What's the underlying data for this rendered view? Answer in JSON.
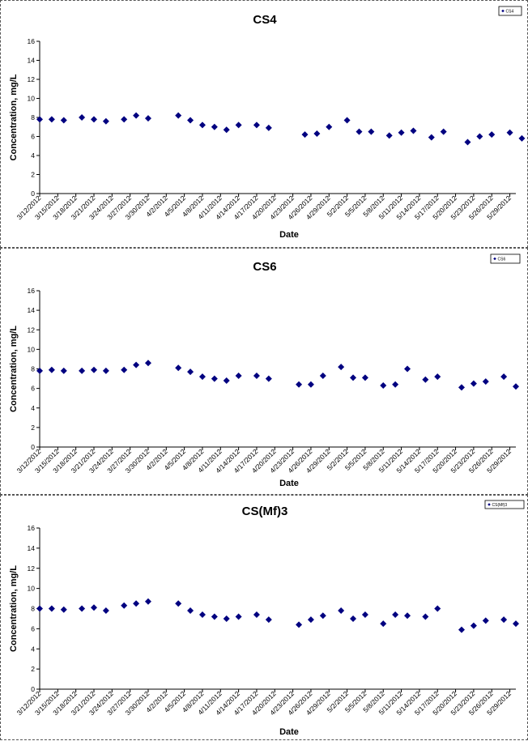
{
  "chart_data": [
    {
      "type": "scatter",
      "title": "CS4",
      "xlabel": "Date",
      "ylabel": "Concentration, mg/L",
      "ylim": [
        0,
        16
      ],
      "yticks": [
        "0",
        "2",
        "4",
        "6",
        "8",
        "10",
        "12",
        "14",
        "16"
      ],
      "xlim": [
        "3/12/2012",
        "5/30/2012"
      ],
      "xticks": [
        "3/12/2012",
        "3/15/2012",
        "3/18/2012",
        "3/21/2012",
        "3/24/2012",
        "3/27/2012",
        "3/30/2012",
        "4/2/2012",
        "4/5/2012",
        "4/8/2012",
        "4/11/2012",
        "4/14/2012",
        "4/17/2012",
        "4/20/2012",
        "4/23/2012",
        "4/26/2012",
        "4/29/2012",
        "5/2/2012",
        "5/5/2012",
        "5/8/2012",
        "5/11/2012",
        "5/14/2012",
        "5/17/2012",
        "5/20/2012",
        "5/23/2012",
        "5/26/2012",
        "5/29/2012"
      ],
      "grid": false,
      "legend": "top-right",
      "marker_color": "#000080",
      "series": [
        {
          "name": "CS4",
          "points": [
            {
              "x": "3/12/2012",
              "y": 7.8
            },
            {
              "x": "3/14/2012",
              "y": 7.8
            },
            {
              "x": "3/16/2012",
              "y": 7.7
            },
            {
              "x": "3/19/2012",
              "y": 8.0
            },
            {
              "x": "3/21/2012",
              "y": 7.8
            },
            {
              "x": "3/23/2012",
              "y": 7.6
            },
            {
              "x": "3/26/2012",
              "y": 7.8
            },
            {
              "x": "3/28/2012",
              "y": 8.2
            },
            {
              "x": "3/30/2012",
              "y": 7.9
            },
            {
              "x": "4/4/2012",
              "y": 8.2
            },
            {
              "x": "4/6/2012",
              "y": 7.7
            },
            {
              "x": "4/8/2012",
              "y": 7.2
            },
            {
              "x": "4/10/2012",
              "y": 7.0
            },
            {
              "x": "4/12/2012",
              "y": 6.7
            },
            {
              "x": "4/14/2012",
              "y": 7.2
            },
            {
              "x": "4/17/2012",
              "y": 7.2
            },
            {
              "x": "4/19/2012",
              "y": 6.9
            },
            {
              "x": "4/25/2012",
              "y": 6.2
            },
            {
              "x": "4/27/2012",
              "y": 6.3
            },
            {
              "x": "4/29/2012",
              "y": 7.0
            },
            {
              "x": "5/2/2012",
              "y": 7.7
            },
            {
              "x": "5/4/2012",
              "y": 6.5
            },
            {
              "x": "5/6/2012",
              "y": 6.5
            },
            {
              "x": "5/9/2012",
              "y": 6.1
            },
            {
              "x": "5/11/2012",
              "y": 6.4
            },
            {
              "x": "5/13/2012",
              "y": 6.6
            },
            {
              "x": "5/16/2012",
              "y": 5.9
            },
            {
              "x": "5/18/2012",
              "y": 6.5
            },
            {
              "x": "5/22/2012",
              "y": 5.4
            },
            {
              "x": "5/24/2012",
              "y": 6.0
            },
            {
              "x": "5/26/2012",
              "y": 6.2
            },
            {
              "x": "5/29/2012",
              "y": 6.4
            },
            {
              "x": "5/31/2012",
              "y": 5.8
            }
          ]
        }
      ]
    },
    {
      "type": "scatter",
      "title": "CS6",
      "xlabel": "Date",
      "ylabel": "Concentration, mg/L",
      "ylim": [
        0,
        16
      ],
      "yticks": [
        "0",
        "2",
        "4",
        "6",
        "8",
        "10",
        "12",
        "14",
        "16"
      ],
      "xlim": [
        "3/12/2012",
        "5/30/2012"
      ],
      "xticks": [
        "3/12/2012",
        "3/15/2012",
        "3/18/2012",
        "3/21/2012",
        "3/24/2012",
        "3/27/2012",
        "3/30/2012",
        "4/2/2012",
        "4/5/2012",
        "4/8/2012",
        "4/11/2012",
        "4/14/2012",
        "4/17/2012",
        "4/20/2012",
        "4/23/2012",
        "4/26/2012",
        "4/29/2012",
        "5/2/2012",
        "5/5/2012",
        "5/8/2012",
        "5/11/2012",
        "5/14/2012",
        "5/17/2012",
        "5/20/2012",
        "5/23/2012",
        "5/26/2012",
        "5/29/2012"
      ],
      "grid": false,
      "legend": "top-right",
      "marker_color": "#000080",
      "series": [
        {
          "name": "CS6",
          "points": [
            {
              "x": "3/12/2012",
              "y": 7.8
            },
            {
              "x": "3/14/2012",
              "y": 7.9
            },
            {
              "x": "3/16/2012",
              "y": 7.8
            },
            {
              "x": "3/19/2012",
              "y": 7.8
            },
            {
              "x": "3/21/2012",
              "y": 7.9
            },
            {
              "x": "3/23/2012",
              "y": 7.8
            },
            {
              "x": "3/26/2012",
              "y": 7.9
            },
            {
              "x": "3/28/2012",
              "y": 8.4
            },
            {
              "x": "3/30/2012",
              "y": 8.6
            },
            {
              "x": "4/4/2012",
              "y": 8.1
            },
            {
              "x": "4/6/2012",
              "y": 7.7
            },
            {
              "x": "4/8/2012",
              "y": 7.2
            },
            {
              "x": "4/10/2012",
              "y": 7.0
            },
            {
              "x": "4/12/2012",
              "y": 6.8
            },
            {
              "x": "4/14/2012",
              "y": 7.3
            },
            {
              "x": "4/17/2012",
              "y": 7.3
            },
            {
              "x": "4/19/2012",
              "y": 7.0
            },
            {
              "x": "4/24/2012",
              "y": 6.4
            },
            {
              "x": "4/26/2012",
              "y": 6.4
            },
            {
              "x": "4/28/2012",
              "y": 7.3
            },
            {
              "x": "5/1/2012",
              "y": 8.2
            },
            {
              "x": "5/3/2012",
              "y": 7.1
            },
            {
              "x": "5/5/2012",
              "y": 7.1
            },
            {
              "x": "5/8/2012",
              "y": 6.3
            },
            {
              "x": "5/10/2012",
              "y": 6.4
            },
            {
              "x": "5/12/2012",
              "y": 8.0
            },
            {
              "x": "5/15/2012",
              "y": 6.9
            },
            {
              "x": "5/17/2012",
              "y": 7.2
            },
            {
              "x": "5/21/2012",
              "y": 6.1
            },
            {
              "x": "5/23/2012",
              "y": 6.5
            },
            {
              "x": "5/25/2012",
              "y": 6.7
            },
            {
              "x": "5/28/2012",
              "y": 7.2
            },
            {
              "x": "5/30/2012",
              "y": 6.2
            }
          ]
        }
      ]
    },
    {
      "type": "scatter",
      "title": "CS(Mf)3",
      "xlabel": "Date",
      "ylabel": "Concentration, mg/L",
      "ylim": [
        0,
        16
      ],
      "yticks": [
        "0",
        "2",
        "4",
        "6",
        "8",
        "10",
        "12",
        "14",
        "16"
      ],
      "xlim": [
        "3/12/2012",
        "5/30/2012"
      ],
      "xticks": [
        "3/12/2012",
        "3/15/2012",
        "3/18/2012",
        "3/21/2012",
        "3/24/2012",
        "3/27/2012",
        "3/30/2012",
        "4/2/2012",
        "4/5/2012",
        "4/8/2012",
        "4/11/2012",
        "4/14/2012",
        "4/17/2012",
        "4/20/2012",
        "4/23/2012",
        "4/26/2012",
        "4/29/2012",
        "5/2/2012",
        "5/5/2012",
        "5/8/2012",
        "5/11/2012",
        "5/14/2012",
        "5/17/2012",
        "5/20/2012",
        "5/23/2012",
        "5/26/2012",
        "5/29/2012"
      ],
      "grid": false,
      "legend": "top-right",
      "marker_color": "#000080",
      "series": [
        {
          "name": "CS(Mf)3",
          "points": [
            {
              "x": "3/12/2012",
              "y": 8.0
            },
            {
              "x": "3/14/2012",
              "y": 8.0
            },
            {
              "x": "3/16/2012",
              "y": 7.9
            },
            {
              "x": "3/19/2012",
              "y": 8.0
            },
            {
              "x": "3/21/2012",
              "y": 8.1
            },
            {
              "x": "3/23/2012",
              "y": 7.8
            },
            {
              "x": "3/26/2012",
              "y": 8.3
            },
            {
              "x": "3/28/2012",
              "y": 8.5
            },
            {
              "x": "3/30/2012",
              "y": 8.7
            },
            {
              "x": "4/4/2012",
              "y": 8.5
            },
            {
              "x": "4/6/2012",
              "y": 7.8
            },
            {
              "x": "4/8/2012",
              "y": 7.4
            },
            {
              "x": "4/10/2012",
              "y": 7.2
            },
            {
              "x": "4/12/2012",
              "y": 7.0
            },
            {
              "x": "4/14/2012",
              "y": 7.2
            },
            {
              "x": "4/17/2012",
              "y": 7.4
            },
            {
              "x": "4/19/2012",
              "y": 6.9
            },
            {
              "x": "4/24/2012",
              "y": 6.4
            },
            {
              "x": "4/26/2012",
              "y": 6.9
            },
            {
              "x": "4/28/2012",
              "y": 7.3
            },
            {
              "x": "5/1/2012",
              "y": 7.8
            },
            {
              "x": "5/3/2012",
              "y": 7.0
            },
            {
              "x": "5/5/2012",
              "y": 7.4
            },
            {
              "x": "5/8/2012",
              "y": 6.5
            },
            {
              "x": "5/10/2012",
              "y": 7.4
            },
            {
              "x": "5/12/2012",
              "y": 7.3
            },
            {
              "x": "5/15/2012",
              "y": 7.2
            },
            {
              "x": "5/17/2012",
              "y": 8.0
            },
            {
              "x": "5/21/2012",
              "y": 5.9
            },
            {
              "x": "5/23/2012",
              "y": 6.3
            },
            {
              "x": "5/25/2012",
              "y": 6.8
            },
            {
              "x": "5/28/2012",
              "y": 6.9
            },
            {
              "x": "5/30/2012",
              "y": 6.5
            }
          ]
        }
      ]
    }
  ]
}
